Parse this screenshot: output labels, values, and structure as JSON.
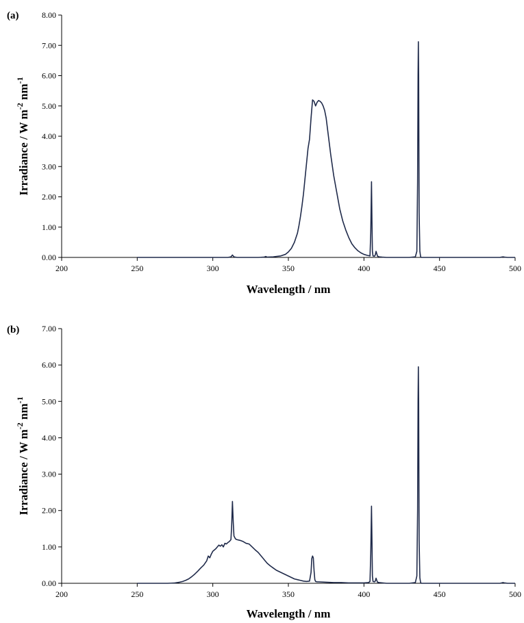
{
  "chart_data": [
    {
      "panel": "(a)",
      "type": "line",
      "xlabel": "Wavelength / nm",
      "ylabel": "Irradiance / W m-2 nm-1",
      "ylabel_parts": {
        "main": "Irradiance / W m",
        "sup1": "-2",
        "mid": " nm",
        "sup2": "-1"
      },
      "xlim": [
        200,
        500
      ],
      "ylim": [
        0,
        8
      ],
      "xticks": [
        "200",
        "250",
        "300",
        "350",
        "400",
        "450",
        "500"
      ],
      "yticks": [
        "0.00",
        "1.00",
        "2.00",
        "3.00",
        "4.00",
        "5.00",
        "6.00",
        "7.00",
        "8.00"
      ],
      "grid": false,
      "color": "#1f2a4a",
      "series": [
        {
          "x": [
            250,
            300,
            310,
            312,
            313,
            314,
            316,
            320,
            330,
            334,
            335,
            336,
            340,
            345,
            348,
            350,
            352,
            354,
            356,
            357,
            358,
            359,
            360,
            361,
            362,
            363,
            364,
            365,
            366,
            367,
            368,
            369,
            370,
            371,
            372,
            373,
            374,
            375,
            376,
            378,
            380,
            382,
            384,
            386,
            388,
            390,
            392,
            394,
            396,
            398,
            400,
            402,
            403,
            404,
            404.5,
            405,
            405.3,
            405.6,
            406,
            407,
            407.5,
            408,
            408.5,
            409,
            410,
            412,
            415,
            420,
            425,
            430,
            434,
            435,
            435.5,
            435.8,
            436,
            436.2,
            436.5,
            437,
            437.5,
            438,
            440,
            450,
            470,
            490,
            491,
            492,
            493,
            495,
            500
          ],
          "y": [
            0.0,
            0.0,
            0.0,
            0.02,
            0.08,
            0.02,
            0.0,
            0.0,
            0.0,
            0.01,
            0.03,
            0.01,
            0.02,
            0.05,
            0.1,
            0.18,
            0.3,
            0.5,
            0.8,
            1.05,
            1.35,
            1.7,
            2.1,
            2.6,
            3.1,
            3.6,
            3.9,
            4.6,
            5.2,
            5.15,
            5.0,
            5.12,
            5.18,
            5.15,
            5.1,
            5.0,
            4.85,
            4.6,
            4.2,
            3.4,
            2.7,
            2.15,
            1.6,
            1.2,
            0.9,
            0.65,
            0.45,
            0.32,
            0.22,
            0.15,
            0.1,
            0.07,
            0.06,
            0.05,
            0.8,
            2.5,
            1.2,
            0.2,
            0.05,
            0.04,
            0.08,
            0.2,
            0.12,
            0.04,
            0.02,
            0.01,
            0.0,
            0.0,
            0.0,
            0.0,
            0.02,
            0.2,
            2.5,
            6.0,
            7.12,
            6.0,
            1.5,
            0.2,
            0.02,
            0.0,
            0.0,
            0.0,
            0.0,
            0.0,
            0.01,
            0.02,
            0.01,
            0.0,
            0.0
          ]
        }
      ]
    },
    {
      "panel": "(b)",
      "type": "line",
      "xlabel": "Wavelength / nm",
      "ylabel": "Irradiance / W m-2 nm-1",
      "ylabel_parts": {
        "main": "Irradiance / W m",
        "sup1": "-2",
        "mid": " nm",
        "sup2": "-1"
      },
      "xlim": [
        200,
        500
      ],
      "ylim": [
        0,
        7
      ],
      "xticks": [
        "200",
        "250",
        "300",
        "350",
        "400",
        "450",
        "500"
      ],
      "yticks": [
        "0.00",
        "1.00",
        "2.00",
        "3.00",
        "4.00",
        "5.00",
        "6.00",
        "7.00"
      ],
      "grid": false,
      "color": "#1f2a4a",
      "series": [
        {
          "x": [
            250,
            270,
            275,
            278,
            280,
            282,
            284,
            286,
            288,
            290,
            292,
            294,
            296,
            297,
            298,
            299,
            300,
            302,
            304,
            305,
            306,
            307,
            308,
            309,
            310,
            311,
            312,
            312.5,
            313,
            313.5,
            314,
            315,
            316,
            318,
            320,
            322,
            324,
            326,
            328,
            330,
            332,
            334,
            336,
            338,
            340,
            342,
            344,
            346,
            348,
            350,
            352,
            354,
            356,
            358,
            360,
            362,
            364,
            365,
            365.5,
            366,
            366.5,
            367,
            367.5,
            368,
            369,
            370,
            375,
            380,
            385,
            390,
            395,
            400,
            403,
            404,
            404.5,
            405,
            405.3,
            405.6,
            406,
            407,
            407.5,
            408,
            408.5,
            409,
            410,
            415,
            420,
            425,
            430,
            434,
            435,
            435.5,
            435.8,
            436,
            436.2,
            436.5,
            437,
            437.5,
            438,
            440,
            450,
            470,
            490,
            491,
            492,
            493,
            495,
            500
          ],
          "y": [
            0.0,
            0.0,
            0.01,
            0.03,
            0.05,
            0.08,
            0.12,
            0.18,
            0.25,
            0.33,
            0.42,
            0.5,
            0.62,
            0.75,
            0.7,
            0.8,
            0.88,
            0.95,
            1.05,
            1.02,
            1.06,
            1.0,
            1.1,
            1.08,
            1.12,
            1.15,
            1.2,
            1.6,
            2.25,
            1.7,
            1.3,
            1.22,
            1.2,
            1.18,
            1.15,
            1.1,
            1.08,
            1.0,
            0.92,
            0.85,
            0.75,
            0.65,
            0.55,
            0.48,
            0.42,
            0.36,
            0.32,
            0.28,
            0.24,
            0.2,
            0.16,
            0.12,
            0.1,
            0.08,
            0.06,
            0.05,
            0.06,
            0.3,
            0.68,
            0.75,
            0.7,
            0.35,
            0.1,
            0.05,
            0.04,
            0.04,
            0.03,
            0.02,
            0.02,
            0.01,
            0.01,
            0.01,
            0.02,
            0.05,
            0.8,
            2.12,
            1.2,
            0.2,
            0.05,
            0.04,
            0.06,
            0.14,
            0.08,
            0.03,
            0.02,
            0.0,
            0.0,
            0.0,
            0.0,
            0.02,
            0.2,
            2.0,
            5.0,
            5.95,
            5.0,
            1.2,
            0.15,
            0.02,
            0.0,
            0.0,
            0.0,
            0.0,
            0.0,
            0.01,
            0.02,
            0.01,
            0.0,
            0.0
          ]
        }
      ]
    }
  ]
}
